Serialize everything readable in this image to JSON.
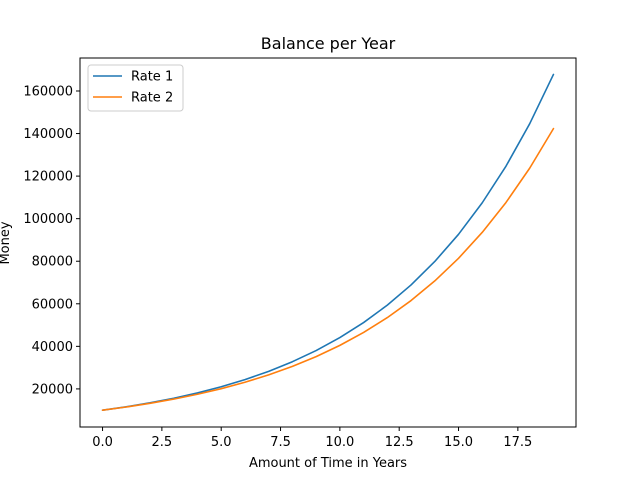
{
  "chart_data": {
    "type": "line",
    "title": "Balance per Year",
    "xlabel": "Amount of Time in Years",
    "ylabel": "Money",
    "xlim": [
      -0.95,
      19.95
    ],
    "ylim": [
      2100,
      175500
    ],
    "x_ticks": [
      0.0,
      2.5,
      5.0,
      7.5,
      10.0,
      12.5,
      15.0,
      17.5
    ],
    "x_tick_labels": [
      "0.0",
      "2.5",
      "5.0",
      "7.5",
      "10.0",
      "12.5",
      "15.0",
      "17.5"
    ],
    "y_ticks": [
      20000,
      40000,
      60000,
      80000,
      100000,
      120000,
      140000,
      160000
    ],
    "y_tick_labels": [
      "20000",
      "40000",
      "60000",
      "80000",
      "100000",
      "120000",
      "140000",
      "160000"
    ],
    "grid": false,
    "legend_position": "top-left",
    "x": [
      0,
      1,
      2,
      3,
      4,
      5,
      6,
      7,
      8,
      9,
      10,
      11,
      12,
      13,
      14,
      15,
      16,
      17,
      18,
      19
    ],
    "series": [
      {
        "name": "Rate 1",
        "color": "#1f77b4",
        "values": [
          10000,
          11600,
          13456,
          15609,
          18106,
          21003,
          24364,
          28262,
          32784,
          38030,
          44114,
          51173,
          59360,
          68858,
          79875,
          92655,
          107480,
          124677,
          144625,
          167765
        ]
      },
      {
        "name": "Rate 2",
        "color": "#ff7f0e",
        "values": [
          10000,
          11500,
          13225,
          15209,
          17490,
          20114,
          23131,
          26600,
          30590,
          35179,
          40456,
          46524,
          53503,
          61528,
          70757,
          81371,
          93576,
          107613,
          123755,
          142318
        ]
      }
    ]
  }
}
